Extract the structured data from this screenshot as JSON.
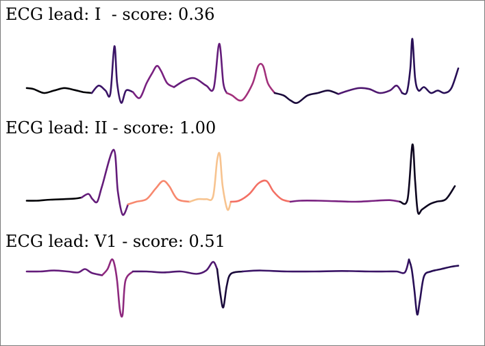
{
  "chart_data": [
    {
      "type": "line",
      "title_parts": {
        "prefix": "ECG lead: ",
        "lead": "I ",
        "sep": " - score: ",
        "score": "0.36"
      },
      "lead": "I",
      "score": 0.36,
      "colormap": [
        "#000004",
        "#2c115f",
        "#721f81",
        "#b73779",
        "#f1605d",
        "#fcb07e",
        "#f0e0a8"
      ],
      "segments": [
        [
          [
            0,
            0.1
          ],
          [
            10,
            0.08
          ],
          [
            25,
            0.0
          ],
          [
            40,
            0.05
          ],
          [
            55,
            0.1
          ],
          [
            70,
            0.06
          ],
          [
            82,
            0.02
          ],
          [
            95,
            0.0
          ]
        ],
        [
          [
            95,
            0.0
          ],
          [
            105,
            0.15
          ],
          [
            115,
            0.05
          ],
          [
            122,
            -0.02
          ],
          [
            128,
            0.95
          ],
          [
            132,
            0.2
          ],
          [
            138,
            -0.2
          ],
          [
            145,
            0.05
          ],
          [
            155,
            0.02
          ]
        ],
        [
          [
            155,
            0.02
          ],
          [
            165,
            -0.1
          ],
          [
            175,
            0.2
          ],
          [
            183,
            0.4
          ],
          [
            190,
            0.55
          ],
          [
            196,
            0.45
          ],
          [
            205,
            0.2
          ],
          [
            215,
            0.12
          ]
        ],
        [
          [
            215,
            0.12
          ],
          [
            230,
            0.25
          ],
          [
            245,
            0.3
          ],
          [
            262,
            0.15
          ],
          [
            273,
            0.1
          ],
          [
            281,
            1.0
          ],
          [
            287,
            0.2
          ],
          [
            292,
            0.0
          ]
        ],
        [
          [
            292,
            0.0
          ],
          [
            300,
            -0.05
          ],
          [
            310,
            -0.15
          ],
          [
            318,
            -0.1
          ],
          [
            330,
            0.2
          ],
          [
            338,
            0.55
          ],
          [
            345,
            0.55
          ],
          [
            352,
            0.2
          ],
          [
            362,
            0.0
          ]
        ],
        [
          [
            362,
            0.0
          ],
          [
            375,
            -0.05
          ],
          [
            385,
            -0.15
          ],
          [
            395,
            -0.2
          ],
          [
            410,
            -0.05
          ],
          [
            425,
            0.0
          ],
          [
            440,
            0.05
          ],
          [
            455,
            -0.02
          ]
        ],
        [
          [
            455,
            -0.02
          ],
          [
            470,
            0.05
          ],
          [
            485,
            0.1
          ],
          [
            500,
            0.08
          ],
          [
            515,
            0.0
          ],
          [
            530,
            0.05
          ],
          [
            540,
            0.15
          ],
          [
            548,
            0.0
          ]
        ],
        [
          [
            548,
            0.0
          ],
          [
            555,
            0.02
          ],
          [
            560,
            0.5
          ],
          [
            563,
            1.1
          ],
          [
            567,
            0.3
          ],
          [
            572,
            0.05
          ],
          [
            580,
            0.12
          ],
          [
            590,
            0.0
          ],
          [
            600,
            0.05
          ],
          [
            610,
            0.0
          ],
          [
            620,
            0.1
          ],
          [
            630,
            0.5
          ]
        ]
      ],
      "segment_weights": [
        0.0,
        0.2,
        0.35,
        0.3,
        0.45,
        0.1,
        0.25,
        0.15
      ]
    },
    {
      "type": "line",
      "title_parts": {
        "prefix": "ECG lead: ",
        "lead": "II",
        "sep": " - score: ",
        "score": "1.00"
      },
      "lead": "II",
      "score": 1.0,
      "colormap": [
        "#000004",
        "#2c115f",
        "#721f81",
        "#b73779",
        "#f1605d",
        "#fcb07e",
        "#f0e0a8"
      ],
      "segments": [
        [
          [
            0,
            0.02
          ],
          [
            15,
            0.02
          ],
          [
            35,
            0.04
          ],
          [
            55,
            0.05
          ],
          [
            70,
            0.06
          ],
          [
            80,
            0.08
          ]
        ],
        [
          [
            80,
            0.08
          ],
          [
            90,
            0.15
          ],
          [
            96,
            0.05
          ],
          [
            103,
            0.0
          ],
          [
            110,
            0.3
          ],
          [
            127,
            1.0
          ],
          [
            133,
            0.2
          ],
          [
            140,
            -0.25
          ],
          [
            148,
            -0.05
          ]
        ],
        [
          [
            148,
            -0.05
          ],
          [
            160,
            0.0
          ],
          [
            175,
            0.05
          ],
          [
            188,
            0.25
          ],
          [
            199,
            0.4
          ],
          [
            208,
            0.3
          ],
          [
            220,
            0.05
          ],
          [
            238,
            0.0
          ]
        ],
        [
          [
            238,
            0.0
          ],
          [
            250,
            0.05
          ],
          [
            262,
            0.05
          ],
          [
            272,
            0.1
          ],
          [
            278,
            0.8
          ],
          [
            282,
            0.9
          ],
          [
            286,
            0.3
          ],
          [
            293,
            -0.15
          ],
          [
            298,
            0.0
          ]
        ],
        [
          [
            298,
            0.0
          ],
          [
            310,
            0.02
          ],
          [
            325,
            0.15
          ],
          [
            338,
            0.35
          ],
          [
            350,
            0.4
          ],
          [
            360,
            0.2
          ],
          [
            372,
            0.05
          ],
          [
            385,
            0.0
          ]
        ],
        [
          [
            385,
            0.0
          ],
          [
            400,
            0.02
          ],
          [
            425,
            0.02
          ],
          [
            450,
            0.01
          ],
          [
            480,
            0.0
          ],
          [
            510,
            0.02
          ],
          [
            530,
            0.03
          ],
          [
            545,
            0.0
          ]
        ],
        [
          [
            545,
            0.0
          ],
          [
            556,
            0.05
          ],
          [
            563,
            1.1
          ],
          [
            567,
            0.4
          ],
          [
            571,
            -0.2
          ],
          [
            577,
            -0.15
          ],
          [
            588,
            -0.05
          ],
          [
            598,
            0.0
          ],
          [
            612,
            0.05
          ],
          [
            625,
            0.3
          ]
        ]
      ],
      "segment_weights": [
        0.0,
        0.3,
        0.75,
        0.9,
        0.7,
        0.35,
        0.05
      ]
    },
    {
      "type": "line",
      "title_parts": {
        "prefix": "ECG lead: ",
        "lead": "V1",
        "sep": " - score: ",
        "score": "0.51"
      },
      "lead": "V1",
      "score": 0.51,
      "colormap": [
        "#000004",
        "#2c115f",
        "#721f81",
        "#b73779",
        "#f1605d",
        "#fcb07e",
        "#f0e0a8"
      ],
      "segments": [
        [
          [
            0,
            0.0
          ],
          [
            20,
            0.0
          ],
          [
            40,
            0.02
          ],
          [
            60,
            0.0
          ],
          [
            75,
            -0.02
          ],
          [
            85,
            0.05
          ],
          [
            95,
            -0.03
          ],
          [
            110,
            -0.08
          ]
        ],
        [
          [
            110,
            -0.08
          ],
          [
            118,
            0.05
          ],
          [
            124,
            0.25
          ],
          [
            128,
            0.15
          ],
          [
            132,
            -0.2
          ],
          [
            136,
            -0.8
          ],
          [
            140,
            -0.9
          ],
          [
            144,
            -0.2
          ],
          [
            155,
            0.0
          ]
        ],
        [
          [
            155,
            0.0
          ],
          [
            175,
            0.0
          ],
          [
            200,
            -0.02
          ],
          [
            225,
            0.0
          ],
          [
            248,
            -0.05
          ],
          [
            262,
            0.02
          ],
          [
            272,
            0.2
          ],
          [
            278,
            0.05
          ]
        ],
        [
          [
            278,
            0.05
          ],
          [
            283,
            -0.5
          ],
          [
            287,
            -0.75
          ],
          [
            292,
            -0.3
          ],
          [
            298,
            -0.05
          ],
          [
            315,
            0.0
          ]
        ],
        [
          [
            315,
            0.0
          ],
          [
            340,
            0.02
          ],
          [
            380,
            0.0
          ],
          [
            420,
            0.0
          ],
          [
            460,
            0.01
          ],
          [
            500,
            0.0
          ],
          [
            525,
            0.0
          ],
          [
            540,
            0.0
          ],
          [
            552,
            -0.02
          ],
          [
            558,
            0.25
          ]
        ],
        [
          [
            558,
            0.25
          ],
          [
            562,
            0.05
          ],
          [
            566,
            -0.4
          ],
          [
            570,
            -0.9
          ],
          [
            574,
            -0.6
          ],
          [
            580,
            -0.1
          ],
          [
            590,
            0.0
          ],
          [
            605,
            0.05
          ],
          [
            620,
            0.1
          ],
          [
            630,
            0.12
          ]
        ]
      ],
      "segment_weights": [
        0.3,
        0.4,
        0.25,
        0.1,
        0.2,
        0.15
      ]
    }
  ]
}
